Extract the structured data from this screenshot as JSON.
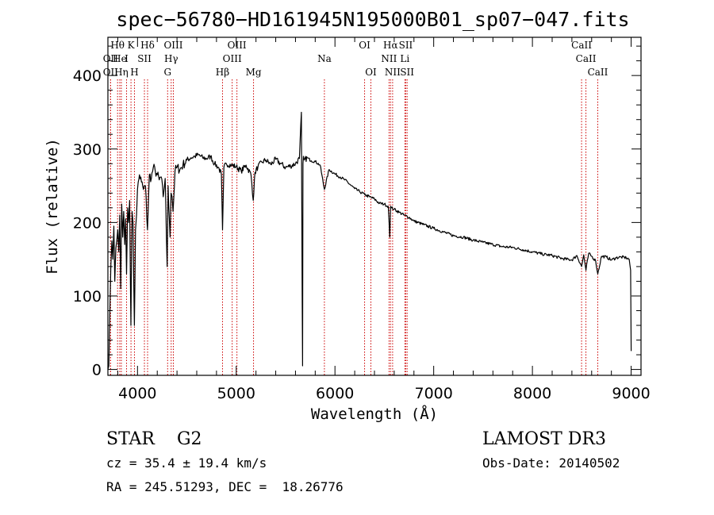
{
  "chart_data": {
    "type": "line",
    "title": "spec−56780−HD161945N195000B01_sp07−047.fits",
    "xlabel": "Wavelength (Å)",
    "ylabel": "Flux (relative)",
    "xlim": [
      3700,
      9100
    ],
    "ylim": [
      -8,
      452
    ],
    "xticks": [
      4000,
      5000,
      6000,
      7000,
      8000,
      9000
    ],
    "xtick_labels": [
      "4000",
      "5000",
      "6000",
      "7000",
      "8000",
      "9000"
    ],
    "yticks": [
      0,
      100,
      200,
      300,
      400
    ],
    "ytick_labels": [
      "0",
      "100",
      "200",
      "300",
      "400"
    ],
    "grid": false,
    "series": [
      {
        "name": "flux",
        "x": [
          3700,
          3710,
          3720,
          3730,
          3740,
          3750,
          3760,
          3770,
          3780,
          3790,
          3800,
          3810,
          3820,
          3830,
          3840,
          3850,
          3860,
          3870,
          3880,
          3889,
          3900,
          3910,
          3920,
          3933,
          3945,
          3955,
          3968,
          3980,
          3990,
          4000,
          4020,
          4040,
          4060,
          4080,
          4101,
          4120,
          4140,
          4160,
          4180,
          4200,
          4220,
          4240,
          4260,
          4280,
          4300,
          4310,
          4330,
          4340,
          4350,
          4360,
          4380,
          4400,
          4430,
          4460,
          4500,
          4540,
          4580,
          4620,
          4660,
          4700,
          4740,
          4780,
          4820,
          4850,
          4861,
          4875,
          4900,
          4950,
          5000,
          5050,
          5100,
          5150,
          5172,
          5190,
          5220,
          5260,
          5300,
          5350,
          5400,
          5450,
          5500,
          5550,
          5600,
          5640,
          5660,
          5668,
          5672,
          5676,
          5680,
          5690,
          5720,
          5760,
          5800,
          5850,
          5893,
          5940,
          6000,
          6050,
          6100,
          6150,
          6200,
          6250,
          6300,
          6350,
          6400,
          6450,
          6500,
          6540,
          6555,
          6563,
          6572,
          6600,
          6650,
          6700,
          6750,
          6800,
          6900,
          7000,
          7100,
          7200,
          7300,
          7400,
          7500,
          7600,
          7700,
          7800,
          7900,
          8000,
          8100,
          8200,
          8300,
          8400,
          8450,
          8498,
          8520,
          8542,
          8570,
          8600,
          8640,
          8662,
          8700,
          8750,
          8800,
          8850,
          8900,
          8950,
          8980,
          8995,
          9000
        ],
        "y": [
          0,
          5,
          80,
          140,
          175,
          150,
          195,
          120,
          165,
          175,
          190,
          160,
          210,
          110,
          225,
          180,
          215,
          170,
          205,
          130,
          220,
          200,
          230,
          60,
          215,
          200,
          60,
          190,
          210,
          245,
          265,
          255,
          245,
          250,
          190,
          265,
          260,
          275,
          270,
          265,
          258,
          262,
          235,
          260,
          140,
          250,
          180,
          240,
          235,
          215,
          270,
          275,
          272,
          278,
          285,
          288,
          290,
          292,
          288,
          287,
          290,
          280,
          275,
          265,
          190,
          275,
          280,
          278,
          276,
          270,
          278,
          265,
          230,
          268,
          276,
          282,
          285,
          279,
          286,
          280,
          275,
          277,
          280,
          287,
          350,
          100,
          5,
          280,
          290,
          285,
          288,
          284,
          283,
          278,
          245,
          272,
          266,
          262,
          258,
          252,
          246,
          242,
          238,
          235,
          232,
          226,
          225,
          222,
          180,
          222,
          220,
          218,
          214,
          210,
          207,
          202,
          197,
          192,
          187,
          182,
          180,
          176,
          173,
          170,
          167,
          166,
          163,
          160,
          157,
          155,
          151,
          149,
          155,
          140,
          156,
          135,
          158,
          154,
          148,
          130,
          154,
          153,
          149,
          152,
          153,
          152,
          150,
          135,
          25
        ]
      }
    ],
    "spectral_lines": [
      {
        "label": "Hθ",
        "wavelength": 3798,
        "row": 1
      },
      {
        "label": "OII",
        "wavelength": 3727,
        "row": 2
      },
      {
        "label": "OII",
        "wavelength": 3727,
        "row": 3
      },
      {
        "label": "He",
        "wavelength": 3820,
        "row": 2
      },
      {
        "label": "Hη",
        "wavelength": 3836,
        "row": 3
      },
      {
        "label": "K",
        "wavelength": 3934,
        "row": 1
      },
      {
        "label": "I",
        "wavelength": 3889,
        "row": 2
      },
      {
        "label": "H",
        "wavelength": 3969,
        "row": 3
      },
      {
        "label": "SII",
        "wavelength": 4070,
        "row": 2
      },
      {
        "label": "Hδ",
        "wavelength": 4102,
        "row": 1
      },
      {
        "label": "OIII",
        "wavelength": 4363,
        "row": 1
      },
      {
        "label": "Hγ",
        "wavelength": 4341,
        "row": 2
      },
      {
        "label": "G",
        "wavelength": 4305,
        "row": 3
      },
      {
        "label": "Hβ",
        "wavelength": 4861,
        "row": 3
      },
      {
        "label": "OIII",
        "wavelength": 5007,
        "row": 1
      },
      {
        "label": "OIII",
        "wavelength": 4959,
        "row": 2
      },
      {
        "label": "Mg",
        "wavelength": 5175,
        "row": 3
      },
      {
        "label": "Na",
        "wavelength": 5893,
        "row": 2
      },
      {
        "label": "OI",
        "wavelength": 6300,
        "row": 1
      },
      {
        "label": "OI",
        "wavelength": 6364,
        "row": 3
      },
      {
        "label": "Hα",
        "wavelength": 6563,
        "row": 1
      },
      {
        "label": "SII",
        "wavelength": 6717,
        "row": 1
      },
      {
        "label": "NII",
        "wavelength": 6548,
        "row": 2
      },
      {
        "label": "Li",
        "wavelength": 6708,
        "row": 2
      },
      {
        "label": "NII",
        "wavelength": 6584,
        "row": 3
      },
      {
        "label": "SII",
        "wavelength": 6731,
        "row": 3
      },
      {
        "label": "CaII",
        "wavelength": 8498,
        "row": 1
      },
      {
        "label": "CaII",
        "wavelength": 8542,
        "row": 2
      },
      {
        "label": "CaII",
        "wavelength": 8662,
        "row": 3
      }
    ]
  },
  "info": {
    "class_line": "STAR    G2",
    "cz": "cz = 35.4 ± 19.4 km/s",
    "coords": "RA = 245.51293, DEC =  18.26776",
    "survey": "LAMOST DR3",
    "obs_date": "Obs-Date: 20140502"
  },
  "colors": {
    "line": "#000000",
    "marker": "#cc0000",
    "background": "#ffffff"
  }
}
